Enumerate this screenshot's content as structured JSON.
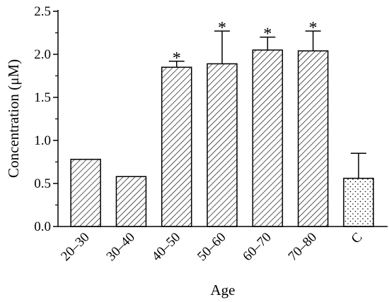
{
  "chart_data": {
    "type": "bar",
    "title": "",
    "xlabel": "Age",
    "ylabel": "Concentration (μM)",
    "ylim": [
      0,
      2.5
    ],
    "yticks": [
      "0.0",
      "0.5",
      "1.0",
      "1.5",
      "2.0",
      "2.5"
    ],
    "categories": [
      "20–30",
      "30–40",
      "40–50",
      "50–60",
      "60–70",
      "70–80",
      "C"
    ],
    "values": [
      0.78,
      0.58,
      1.85,
      1.89,
      2.05,
      2.04,
      0.56
    ],
    "errors": [
      0,
      0,
      0.07,
      0.38,
      0.15,
      0.23,
      0.29
    ],
    "significance": [
      "",
      "",
      "*",
      "*",
      "*",
      "*",
      ""
    ],
    "patterns": [
      "hatch",
      "hatch",
      "hatch",
      "hatch",
      "hatch",
      "hatch",
      "dots"
    ],
    "grid": false
  }
}
